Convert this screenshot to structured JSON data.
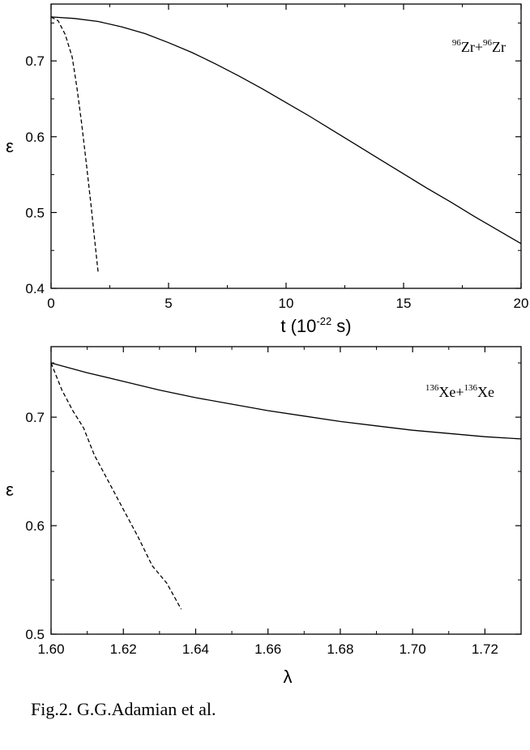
{
  "chart_data": [
    {
      "type": "line",
      "xlabel_main": "t (10",
      "xlabel_exp": "-22",
      "xlabel_tail": " s)",
      "ylabel": "ε",
      "xlim": [
        0,
        20
      ],
      "ylim": [
        0.4,
        0.775
      ],
      "xticks": [
        0,
        5,
        10,
        15,
        20
      ],
      "xtick_labels": [
        "0",
        "5",
        "10",
        "15",
        "20"
      ],
      "yticks": [
        0.4,
        0.5,
        0.6,
        0.7
      ],
      "ytick_labels": [
        "0.4",
        "0.5",
        "0.6",
        "0.7"
      ],
      "legend": {
        "parts": [
          "96",
          "Zr+",
          "96",
          "Zr"
        ]
      },
      "series": [
        {
          "style": "solid",
          "x": [
            0,
            1,
            2,
            3,
            4,
            5,
            6,
            7,
            8,
            9,
            10,
            11,
            12,
            13,
            14,
            15,
            16,
            17,
            18,
            19,
            20
          ],
          "y": [
            0.758,
            0.756,
            0.752,
            0.745,
            0.736,
            0.724,
            0.711,
            0.696,
            0.68,
            0.663,
            0.645,
            0.627,
            0.608,
            0.589,
            0.57,
            0.551,
            0.532,
            0.514,
            0.495,
            0.477,
            0.459
          ]
        },
        {
          "style": "dashed",
          "x": [
            0,
            0.3,
            0.6,
            0.9,
            1.1,
            1.3,
            1.5,
            1.7,
            1.85,
            2.0
          ],
          "y": [
            0.758,
            0.753,
            0.735,
            0.705,
            0.665,
            0.618,
            0.565,
            0.51,
            0.465,
            0.422
          ]
        }
      ]
    },
    {
      "type": "line",
      "xlabel": "λ",
      "ylabel": "ε",
      "xlim": [
        1.6,
        1.73
      ],
      "ylim": [
        0.5,
        0.765
      ],
      "xticks": [
        1.6,
        1.62,
        1.64,
        1.66,
        1.68,
        1.7,
        1.72
      ],
      "xtick_labels": [
        "1.60",
        "1.62",
        "1.64",
        "1.66",
        "1.68",
        "1.70",
        "1.72"
      ],
      "yticks": [
        0.5,
        0.6,
        0.7
      ],
      "ytick_labels": [
        "0.5",
        "0.6",
        "0.7"
      ],
      "legend": {
        "parts": [
          "136",
          "Xe+",
          "136",
          "Xe"
        ]
      },
      "series": [
        {
          "style": "solid",
          "x": [
            1.6,
            1.61,
            1.62,
            1.63,
            1.64,
            1.65,
            1.66,
            1.67,
            1.68,
            1.69,
            1.7,
            1.71,
            1.72,
            1.73
          ],
          "y": [
            0.75,
            0.741,
            0.733,
            0.725,
            0.718,
            0.712,
            0.706,
            0.701,
            0.696,
            0.692,
            0.688,
            0.685,
            0.682,
            0.68
          ]
        },
        {
          "style": "dashed",
          "x": [
            1.6,
            1.603,
            1.606,
            1.609,
            1.612,
            1.616,
            1.62,
            1.624,
            1.628,
            1.632,
            1.634,
            1.636
          ],
          "y": [
            0.75,
            0.725,
            0.706,
            0.69,
            0.665,
            0.64,
            0.615,
            0.59,
            0.563,
            0.547,
            0.535,
            0.523
          ]
        }
      ]
    }
  ],
  "caption": "Fig.2. G.G.Adamian et al."
}
